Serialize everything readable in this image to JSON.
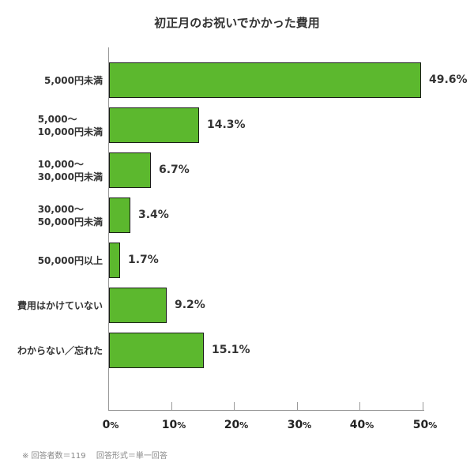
{
  "chart_data": {
    "type": "bar",
    "orientation": "horizontal",
    "title": "初正月のお祝いでかかった費用",
    "categories": [
      "5,000円未満",
      "5,000〜\n10,000円未満",
      "10,000〜\n30,000円未満",
      "30,000〜\n50,000円未満",
      "50,000円以上",
      "費用はかけていない",
      "わからない／忘れた"
    ],
    "values": [
      49.6,
      14.3,
      6.7,
      3.4,
      1.7,
      9.2,
      15.1
    ],
    "value_labels": [
      "49.6%",
      "14.3%",
      "6.7%",
      "3.4%",
      "1.7%",
      "9.2%",
      "15.1%"
    ],
    "xlabel": "",
    "ylabel": "",
    "xlim": [
      0,
      50
    ],
    "xticks": [
      {
        "num": "0",
        "unit": "%"
      },
      {
        "num": "10",
        "unit": "%"
      },
      {
        "num": "20",
        "unit": "%"
      },
      {
        "num": "30",
        "unit": "%"
      },
      {
        "num": "40",
        "unit": "%"
      },
      {
        "num": "50",
        "unit": "%"
      }
    ],
    "grid": false,
    "legend": null,
    "bar_color": "#5cb82e"
  },
  "footnote": "※ 回答者数＝119　 回答形式＝単一回答"
}
